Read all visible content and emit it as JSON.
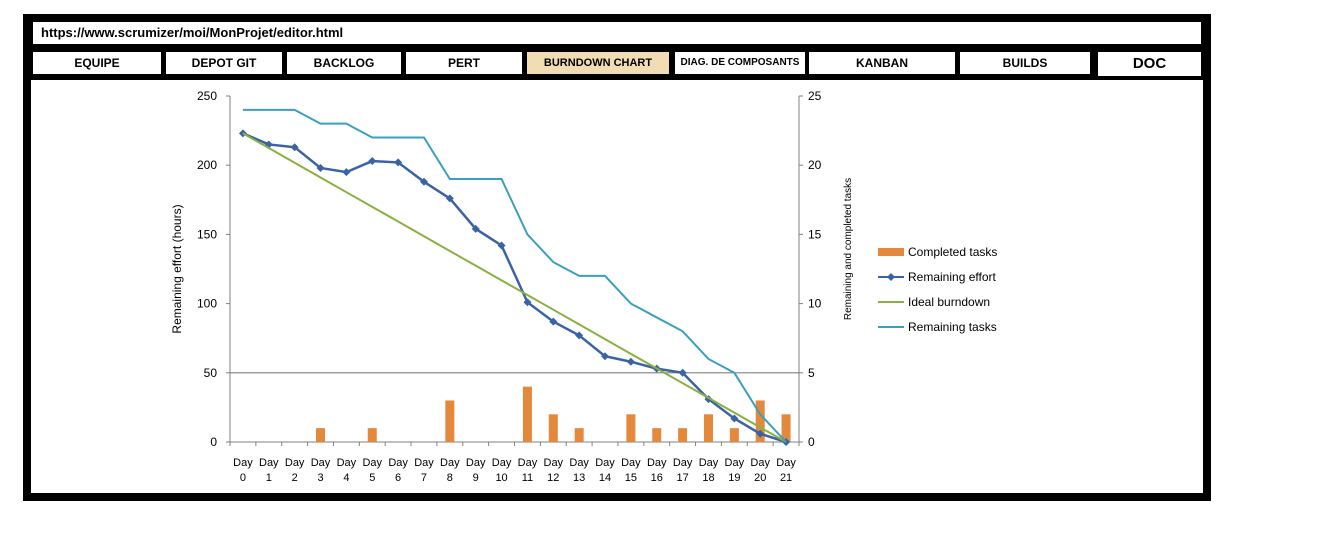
{
  "browser": {
    "url": "https://www.scrumizer/moi/MonProjet/editor.html"
  },
  "tabs": [
    {
      "label": "EQUIPE"
    },
    {
      "label": "DEPOT GIT"
    },
    {
      "label": "BACKLOG"
    },
    {
      "label": "PERT"
    },
    {
      "label": "BURNDOWN CHART",
      "active": true
    },
    {
      "label": "DIAG. DE COMPOSANTS"
    },
    {
      "label": "KANBAN"
    },
    {
      "label": "BUILDS"
    },
    {
      "label": "DOC"
    }
  ],
  "chart_data": {
    "type": "line",
    "ylabel": "Remaining effort (hours)",
    "y2label": "Remaining and completed tasks",
    "ylim": [
      0,
      250
    ],
    "y2lim": [
      0,
      25
    ],
    "yticks": [
      0,
      50,
      100,
      150,
      200,
      250
    ],
    "y2ticks": [
      0,
      5,
      10,
      15,
      20,
      25
    ],
    "categories": [
      "Day 0",
      "Day 1",
      "Day 2",
      "Day 3",
      "Day 4",
      "Day 5",
      "Day 6",
      "Day 7",
      "Day 8",
      "Day 9",
      "Day 10",
      "Day 11",
      "Day 12",
      "Day 13",
      "Day 14",
      "Day 15",
      "Day 16",
      "Day 17",
      "Day 18",
      "Day 19",
      "Day 20",
      "Day 21"
    ],
    "legend_position": "right",
    "series": [
      {
        "name": "Completed tasks",
        "type": "bar",
        "axis": "right",
        "color": "#e4883c",
        "values": [
          0,
          0,
          0,
          1,
          0,
          1,
          0,
          0,
          3,
          0,
          0,
          4,
          2,
          1,
          0,
          2,
          1,
          1,
          2,
          1,
          3,
          2
        ]
      },
      {
        "name": "Remaining effort",
        "type": "line",
        "axis": "left",
        "color": "#3a63a6",
        "marker": "diamond",
        "values": [
          223,
          215,
          213,
          198,
          195,
          203,
          202,
          188,
          176,
          154,
          142,
          101,
          87,
          77,
          62,
          58,
          53,
          50,
          31,
          17,
          6,
          0
        ]
      },
      {
        "name": "Ideal burndown",
        "type": "line",
        "axis": "left",
        "color": "#8ab040",
        "values": [
          223,
          212.4,
          201.8,
          191.1,
          180.5,
          169.9,
          159.3,
          148.7,
          138,
          127.4,
          116.8,
          106.2,
          95.6,
          85,
          74.3,
          63.7,
          53.1,
          42.5,
          31.9,
          21.2,
          10.6,
          0
        ]
      },
      {
        "name": "Remaining tasks",
        "type": "line",
        "axis": "right",
        "color": "#3aa0bd",
        "values": [
          24,
          24,
          24,
          23,
          23,
          22,
          22,
          22,
          19,
          19,
          19,
          15,
          13,
          12,
          12,
          10,
          9,
          8,
          6,
          5,
          2,
          0
        ]
      }
    ]
  }
}
